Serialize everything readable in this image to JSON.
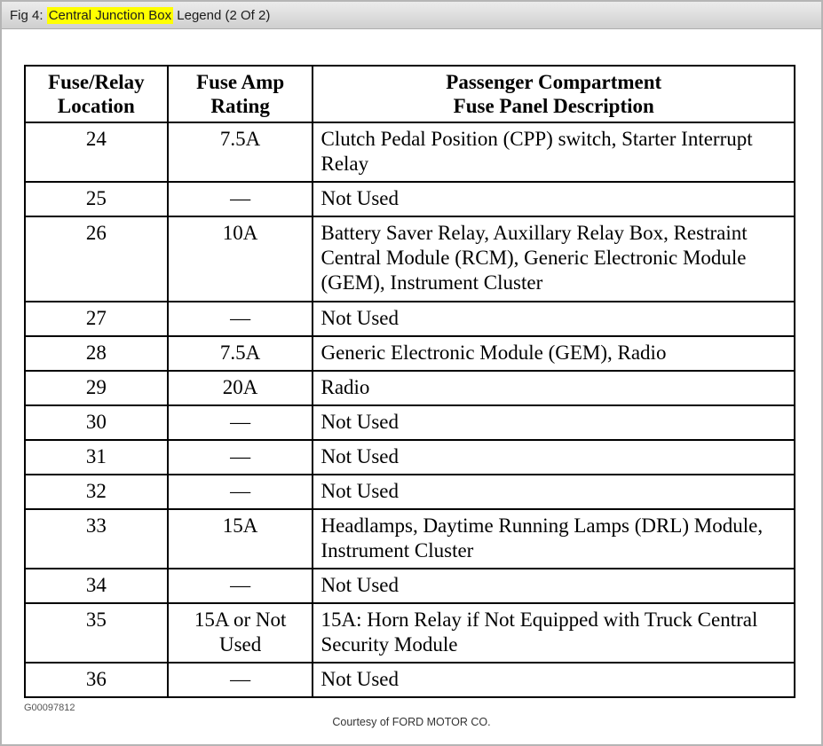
{
  "page": {
    "title": {
      "prefix": "Fig 4: ",
      "highlight": "Central Junction Box",
      "suffix": " Legend (2 Of 2)"
    },
    "figure_code": "G00097812",
    "courtesy": "Courtesy of FORD MOTOR CO.",
    "highlight_color": "#ffff00"
  },
  "table": {
    "headers": [
      [
        "Fuse/Relay",
        "Location"
      ],
      [
        "Fuse Amp",
        "Rating"
      ],
      [
        "Passenger Compartment",
        "Fuse Panel Description"
      ]
    ],
    "rows": [
      {
        "location": "24",
        "rating": "7.5A",
        "description": "Clutch Pedal Position (CPP) switch, Starter Interrupt Relay"
      },
      {
        "location": "25",
        "rating": "—",
        "description": "Not Used"
      },
      {
        "location": "26",
        "rating": "10A",
        "description": "Battery Saver Relay, Auxillary Relay Box, Restraint Central Module (RCM), Generic Electronic Module (GEM), Instrument Cluster"
      },
      {
        "location": "27",
        "rating": "—",
        "description": "Not Used"
      },
      {
        "location": "28",
        "rating": "7.5A",
        "description": "Generic Electronic Module (GEM), Radio"
      },
      {
        "location": "29",
        "rating": "20A",
        "description": "Radio"
      },
      {
        "location": "30",
        "rating": "—",
        "description": "Not Used"
      },
      {
        "location": "31",
        "rating": "—",
        "description": "Not Used"
      },
      {
        "location": "32",
        "rating": "—",
        "description": "Not Used"
      },
      {
        "location": "33",
        "rating": "15A",
        "description": "Headlamps, Daytime Running Lamps (DRL) Module, Instrument Cluster"
      },
      {
        "location": "34",
        "rating": "—",
        "description": "Not Used"
      },
      {
        "location": "35",
        "rating": "15A or Not Used",
        "description": "15A: Horn Relay if Not Equipped with Truck Central Security Module"
      },
      {
        "location": "36",
        "rating": "—",
        "description": "Not Used"
      }
    ]
  }
}
